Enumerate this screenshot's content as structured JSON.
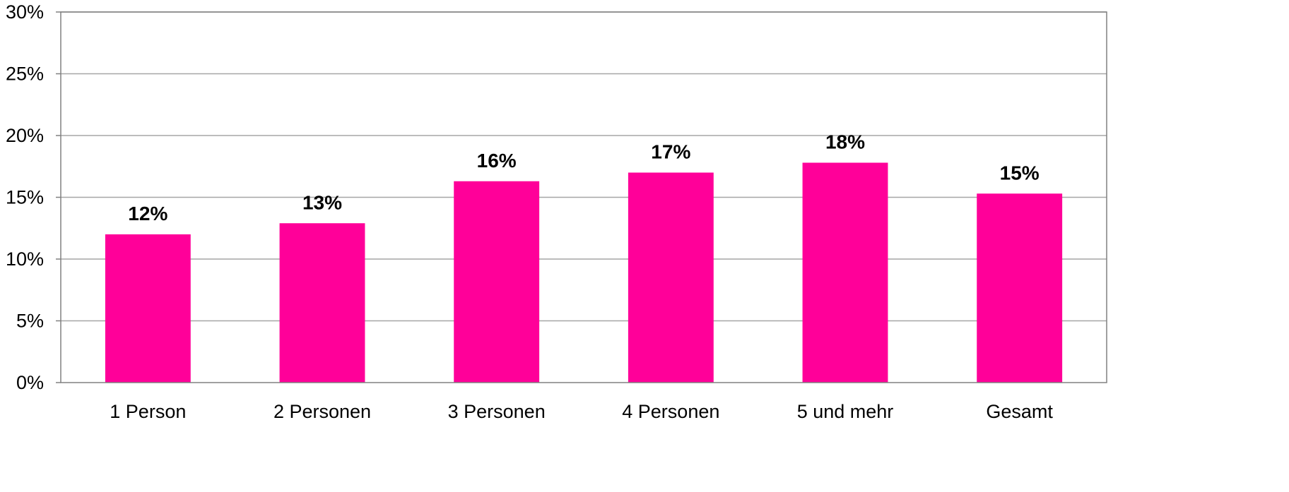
{
  "chart_data": {
    "type": "bar",
    "categories": [
      "1 Person",
      "2 Personen",
      "3 Personen",
      "4 Personen",
      "5 und mehr",
      "Gesamt"
    ],
    "values": [
      12,
      12.9,
      16.3,
      17,
      17.8,
      15.3
    ],
    "data_labels": [
      "12%",
      "13%",
      "16%",
      "17%",
      "18%",
      "15%"
    ],
    "y_ticks": [
      0,
      5,
      10,
      15,
      20,
      25,
      30
    ],
    "y_tick_labels": [
      "0%",
      "5%",
      "10%",
      "15%",
      "20%",
      "25%",
      "30%"
    ],
    "ylim": [
      0,
      30
    ],
    "grid": true,
    "legend": "none",
    "title": "",
    "xlabel": "",
    "ylabel": ""
  },
  "colors": {
    "bar": "#FF0099",
    "grid": "#A6A6A6",
    "axis": "#808080",
    "text": "#000000"
  }
}
